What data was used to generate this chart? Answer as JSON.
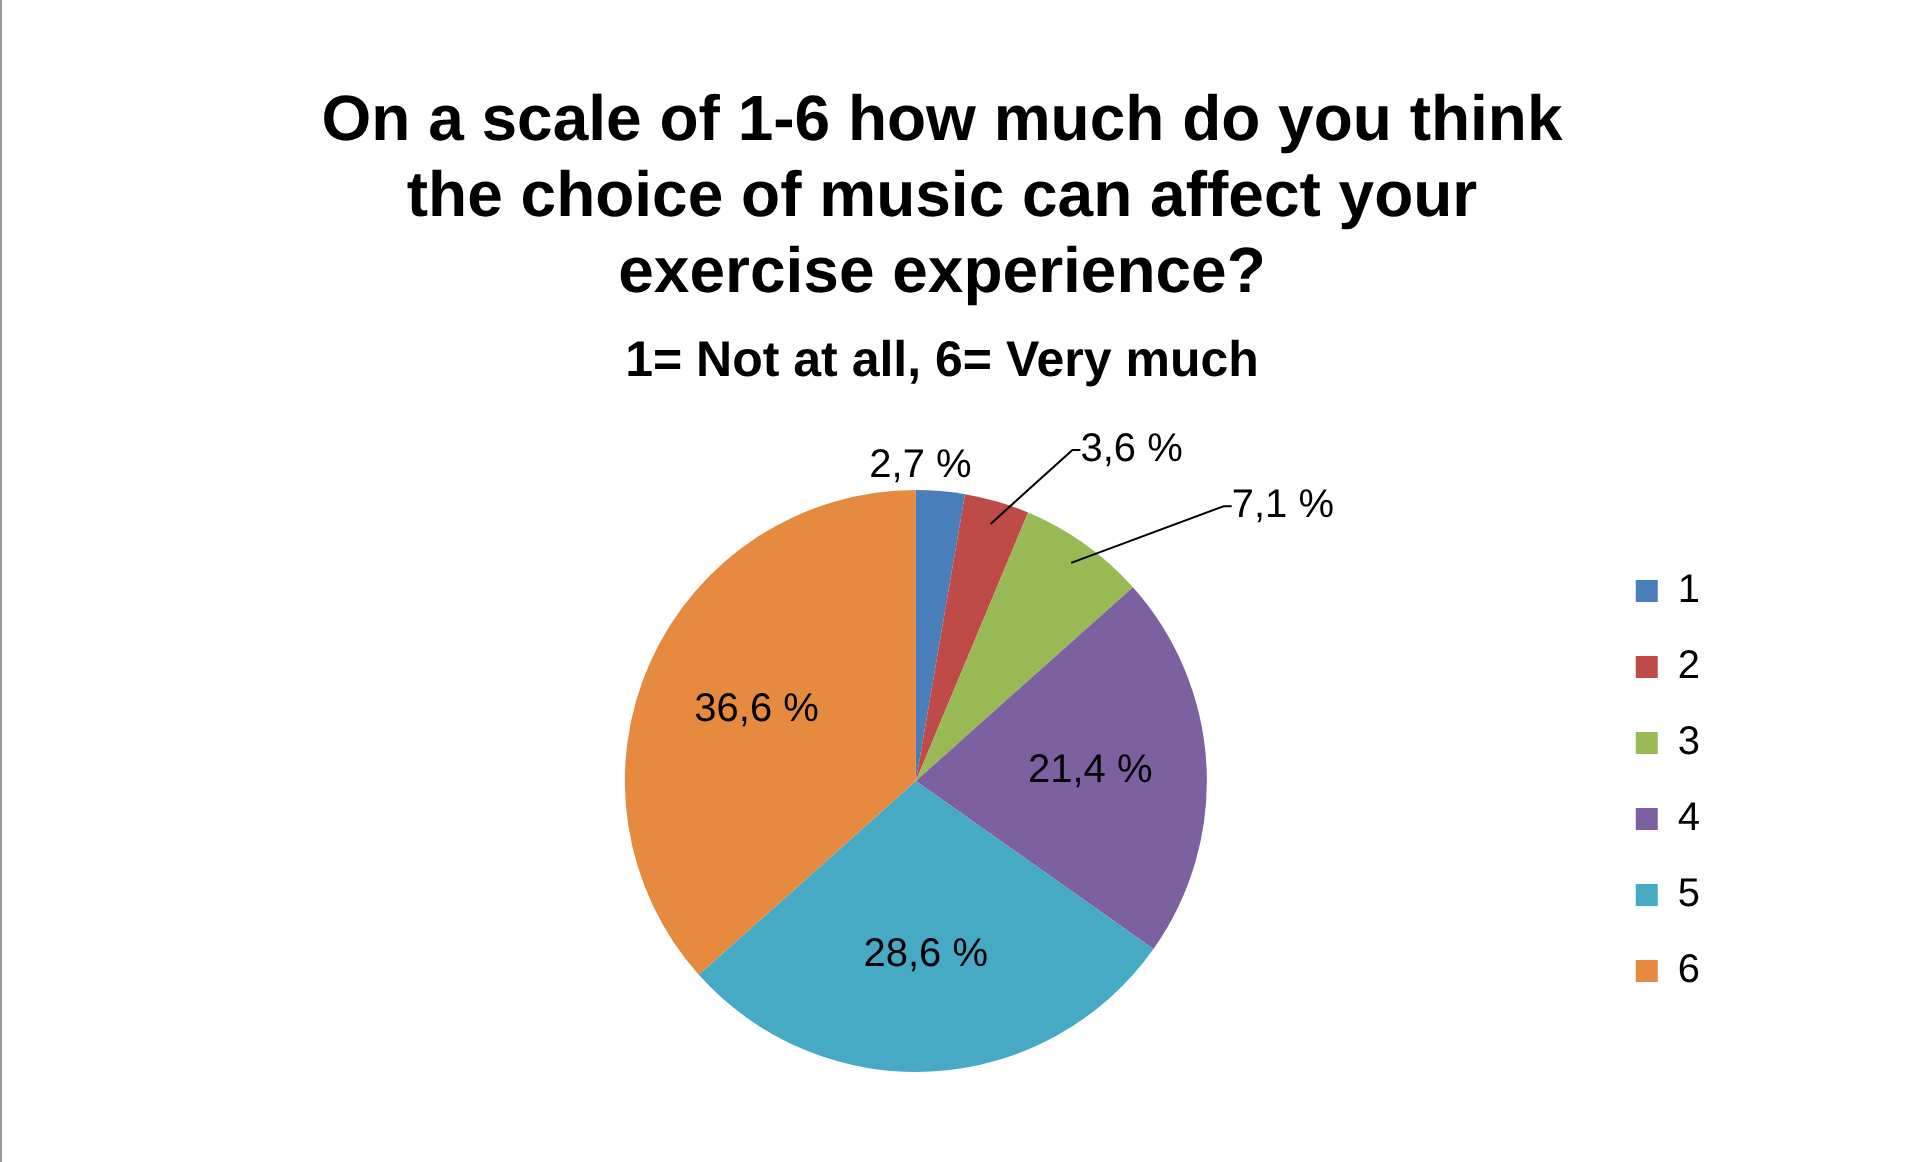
{
  "chart_data": {
    "type": "pie",
    "title": "On a scale of 1-6 how much do you think the choice of music can affect your exercise experience?",
    "subtitle": "1= Not at all, 6= Very much",
    "categories": [
      "1",
      "2",
      "3",
      "4",
      "5",
      "6"
    ],
    "values": [
      2.7,
      3.6,
      7.1,
      21.4,
      28.6,
      36.6
    ],
    "value_labels": [
      "2,7 %",
      "3,6 %",
      "7,1 %",
      "21,4 %",
      "28,6 %",
      "36,6 %"
    ],
    "colors": [
      "#4a7ebb",
      "#be4b48",
      "#98b954",
      "#7d60a0",
      "#46aac5",
      "#e58a3e"
    ],
    "legend": "right"
  }
}
